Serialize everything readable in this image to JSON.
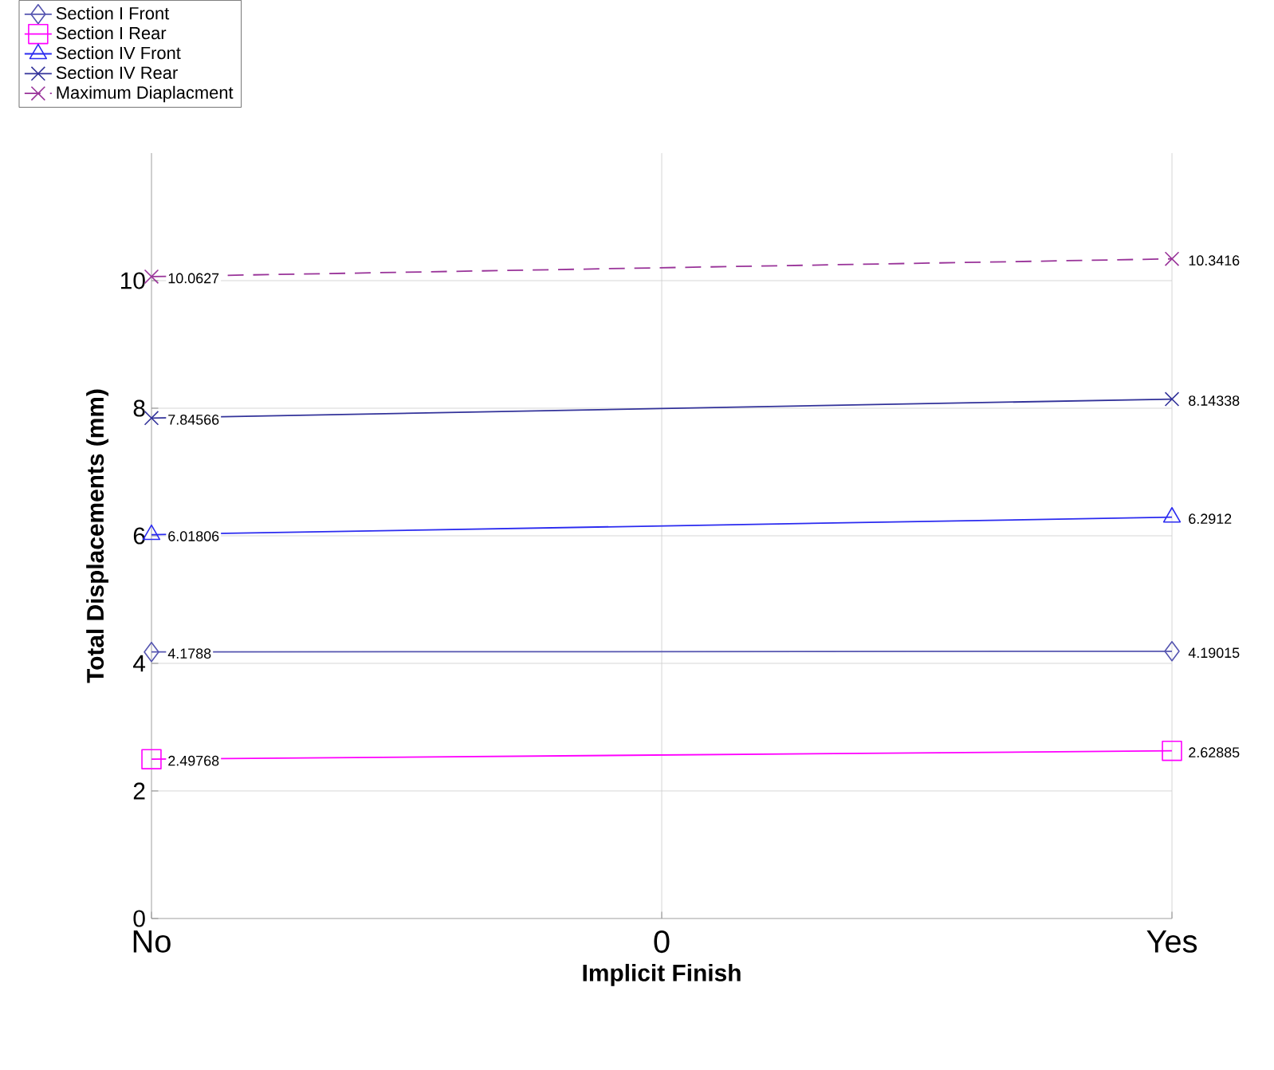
{
  "chart_data": {
    "type": "line",
    "xlabel": "Implicit Finish",
    "ylabel": "Total Displacements (mm)",
    "categories": [
      "No",
      "0",
      "Yes"
    ],
    "series": [
      {
        "name": "Section I Front",
        "color": "#5555b0",
        "marker": "diamond",
        "values": [
          4.1788,
          null,
          4.19015
        ],
        "value_labels": [
          "4.1788",
          null,
          "4.19015"
        ]
      },
      {
        "name": "Section I Rear",
        "color": "#ff00ff",
        "marker": "square",
        "values": [
          2.49768,
          null,
          2.62885
        ],
        "value_labels": [
          "2.49768",
          null,
          "2.62885"
        ]
      },
      {
        "name": "Section IV Front",
        "color": "#2b2bf0",
        "marker": "triangle",
        "values": [
          6.01806,
          null,
          6.2912
        ],
        "value_labels": [
          "6.01806",
          null,
          "6.2912"
        ]
      },
      {
        "name": "Section IV Rear",
        "color": "#33339a",
        "marker": "cross",
        "values": [
          7.84566,
          null,
          8.14338
        ],
        "value_labels": [
          "7.84566",
          null,
          "8.14338"
        ]
      },
      {
        "name": "Maximum Diaplacment",
        "color": "#993399",
        "marker": "cross",
        "line_style": "dashed",
        "values": [
          10.0627,
          null,
          10.3416
        ],
        "value_labels": [
          "10.0627",
          null,
          "10.3416"
        ]
      }
    ],
    "ylim": [
      0,
      12
    ],
    "yticks": [
      0,
      2,
      4,
      6,
      8,
      10
    ],
    "grid": true,
    "legend": "top left"
  }
}
